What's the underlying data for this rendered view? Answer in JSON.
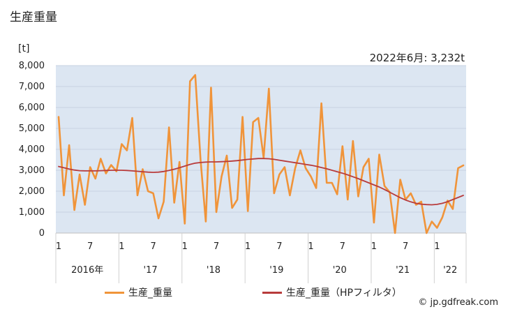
{
  "title": "生産重量",
  "unit_label": "[t]",
  "latest_note": "2022年6月: 3,232t",
  "credit": "© jp.gdfreak.com",
  "legend": {
    "production": "生産_重量",
    "trend": "生産_重量（HPフィルタ）"
  },
  "colors": {
    "production": "#F0943A",
    "trend": "#B83B3B",
    "plot_bg": "#DCE6F2",
    "grid": "#C7D3E2"
  },
  "chart_data": {
    "type": "line",
    "ylim": [
      0,
      8000
    ],
    "yticks": [
      "0",
      "1,000",
      "2,000",
      "3,000",
      "4,000",
      "5,000",
      "6,000",
      "7,000",
      "8,000"
    ],
    "month_labels": [
      "1",
      "7",
      "1",
      "7",
      "1",
      "7",
      "1",
      "7",
      "1",
      "7",
      "1",
      "7",
      "1"
    ],
    "month_label_index": [
      0,
      6,
      12,
      18,
      24,
      30,
      36,
      42,
      48,
      54,
      60,
      66,
      72
    ],
    "year_labels": [
      "2016年",
      "'17",
      "'18",
      "'19",
      "'20",
      "'21",
      "'22"
    ],
    "x_start": "2016-01",
    "x_end": "2022-06",
    "series": [
      {
        "name": "生産_重量",
        "values": [
          5550,
          1800,
          4200,
          1100,
          2800,
          1350,
          3150,
          2600,
          3550,
          2850,
          3250,
          2950,
          4250,
          3950,
          5500,
          1800,
          3050,
          2000,
          1900,
          700,
          1500,
          5050,
          1450,
          3400,
          450,
          7250,
          7550,
          3500,
          550,
          6950,
          1000,
          2700,
          3700,
          1200,
          1600,
          5550,
          1050,
          5300,
          5500,
          3600,
          6900,
          1900,
          2800,
          3150,
          1800,
          3100,
          3950,
          3100,
          2700,
          2150,
          6200,
          2400,
          2400,
          1850,
          4150,
          1600,
          4400,
          1750,
          3150,
          3550,
          500,
          3750,
          2250,
          1950,
          0,
          2550,
          1600,
          1900,
          1350,
          1500,
          0,
          550,
          250,
          750,
          1550,
          1150,
          3100,
          3232
        ]
      },
      {
        "name": "生産_重量（HPフィルタ）",
        "values": [
          3180,
          3120,
          3060,
          3010,
          2980,
          2970,
          2970,
          2970,
          2980,
          2990,
          3000,
          3000,
          3000,
          2990,
          2970,
          2950,
          2930,
          2910,
          2900,
          2910,
          2940,
          2990,
          3050,
          3120,
          3200,
          3280,
          3340,
          3370,
          3390,
          3400,
          3400,
          3410,
          3420,
          3440,
          3460,
          3490,
          3520,
          3540,
          3560,
          3560,
          3550,
          3520,
          3480,
          3440,
          3400,
          3360,
          3320,
          3280,
          3240,
          3190,
          3130,
          3070,
          3000,
          2930,
          2860,
          2780,
          2690,
          2600,
          2500,
          2400,
          2300,
          2200,
          2080,
          1950,
          1820,
          1690,
          1580,
          1490,
          1420,
          1380,
          1360,
          1350,
          1370,
          1420,
          1500,
          1600,
          1700,
          1800
        ]
      }
    ]
  }
}
